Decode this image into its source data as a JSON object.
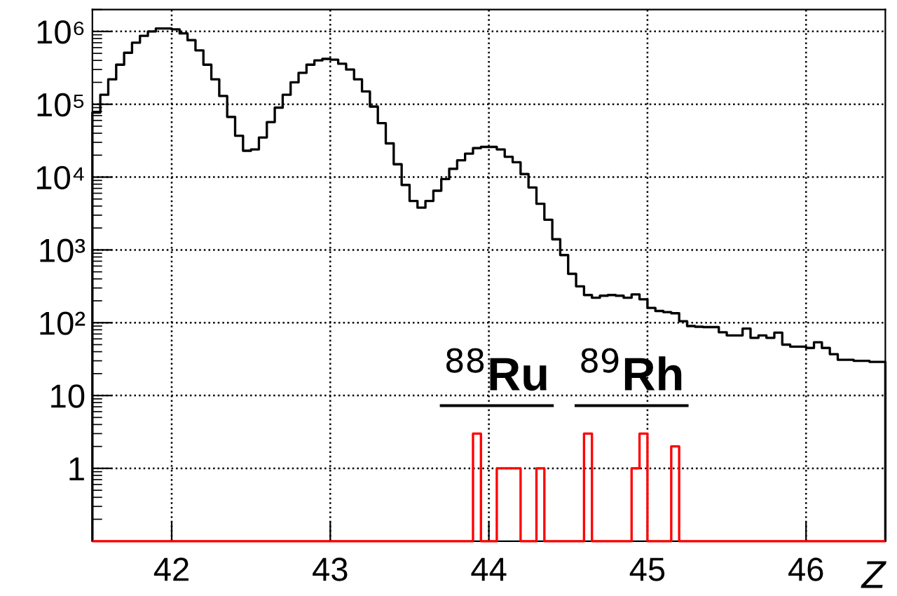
{
  "chart_data": {
    "type": "histogram",
    "xlabel": "Z",
    "bins": [
      41.5,
      41.55,
      41.6,
      41.65,
      41.7,
      41.75,
      41.8,
      41.85,
      41.9,
      41.95,
      42.0,
      42.05,
      42.1,
      42.15,
      42.2,
      42.25,
      42.3,
      42.35,
      42.4,
      42.45,
      42.5,
      42.55,
      42.6,
      42.65,
      42.7,
      42.75,
      42.8,
      42.85,
      42.9,
      42.95,
      43.0,
      43.05,
      43.1,
      43.15,
      43.2,
      43.25,
      43.3,
      43.35,
      43.4,
      43.45,
      43.5,
      43.55,
      43.6,
      43.65,
      43.7,
      43.75,
      43.8,
      43.85,
      43.9,
      43.95,
      44.0,
      44.05,
      44.1,
      44.15,
      44.2,
      44.25,
      44.3,
      44.35,
      44.4,
      44.45,
      44.5,
      44.55,
      44.6,
      44.65,
      44.7,
      44.75,
      44.8,
      44.85,
      44.9,
      44.95,
      45.0,
      45.05,
      45.1,
      45.15,
      45.2,
      45.25,
      45.3,
      45.35,
      45.4,
      45.45,
      45.5,
      45.55,
      45.6,
      45.65,
      45.7,
      45.75,
      45.8,
      45.85,
      45.9,
      45.95,
      46.0,
      46.05,
      46.1,
      46.15,
      46.2,
      46.25,
      46.3,
      46.35,
      46.4,
      46.45,
      46.5
    ],
    "series": [
      {
        "color": "#000000",
        "values": [
          77000,
          135000,
          220000,
          350000,
          510000,
          700000,
          870000,
          1000000,
          1100000,
          1100000,
          1070000,
          940000,
          760000,
          550000,
          350000,
          220000,
          130000,
          67000,
          37000,
          23000,
          24000,
          35000,
          57000,
          90000,
          135000,
          200000,
          270000,
          350000,
          400000,
          420000,
          410000,
          360000,
          300000,
          220000,
          150000,
          93000,
          55000,
          29000,
          15000,
          7800,
          4700,
          3800,
          4700,
          6500,
          9400,
          13000,
          17000,
          21000,
          25000,
          26000,
          26000,
          24000,
          19000,
          16000,
          11000,
          7200,
          4300,
          2600,
          1400,
          850,
          470,
          316,
          240,
          220,
          235,
          240,
          235,
          220,
          245,
          210,
          160,
          145,
          140,
          135,
          105,
          90,
          88,
          87,
          87,
          74,
          67,
          67,
          83,
          62,
          67,
          62,
          73,
          50,
          47,
          47,
          45,
          54,
          45,
          37,
          31,
          31,
          30,
          30,
          29,
          29
        ]
      },
      {
        "color": "#ff0000",
        "values": [
          null,
          null,
          null,
          null,
          null,
          null,
          null,
          null,
          null,
          null,
          null,
          null,
          null,
          null,
          null,
          null,
          null,
          null,
          null,
          null,
          null,
          null,
          null,
          null,
          null,
          null,
          null,
          null,
          null,
          null,
          null,
          null,
          null,
          null,
          null,
          null,
          null,
          null,
          null,
          null,
          null,
          null,
          null,
          null,
          null,
          null,
          null,
          null,
          3,
          null,
          null,
          1,
          1,
          1,
          null,
          null,
          1,
          null,
          null,
          null,
          null,
          null,
          3,
          null,
          null,
          null,
          null,
          null,
          1,
          3,
          null,
          null,
          null,
          2,
          null,
          null,
          null,
          null,
          null,
          null,
          null,
          null,
          null,
          null,
          null,
          null,
          null,
          null,
          null,
          null,
          null,
          null,
          null,
          null,
          null,
          null,
          null,
          null,
          null,
          null
        ]
      }
    ],
    "log": "y",
    "xlim": [
      41.5,
      46.5
    ],
    "ylim": [
      0.1,
      2000000
    ],
    "xticks": [
      42,
      43,
      44,
      45,
      46
    ],
    "yticks": [
      1,
      10,
      {
        "value": 100,
        "label": "10²"
      },
      {
        "value": 1000,
        "label": "10³"
      },
      {
        "value": 10000,
        "label": "10⁴"
      },
      {
        "value": 100000,
        "label": "10⁵"
      },
      {
        "value": 1000000,
        "label": "10⁶"
      }
    ],
    "grid": true,
    "line_style": "solid",
    "annotations": [
      "$^{88}$Ru",
      "$^{89}$Rh"
    ]
  }
}
